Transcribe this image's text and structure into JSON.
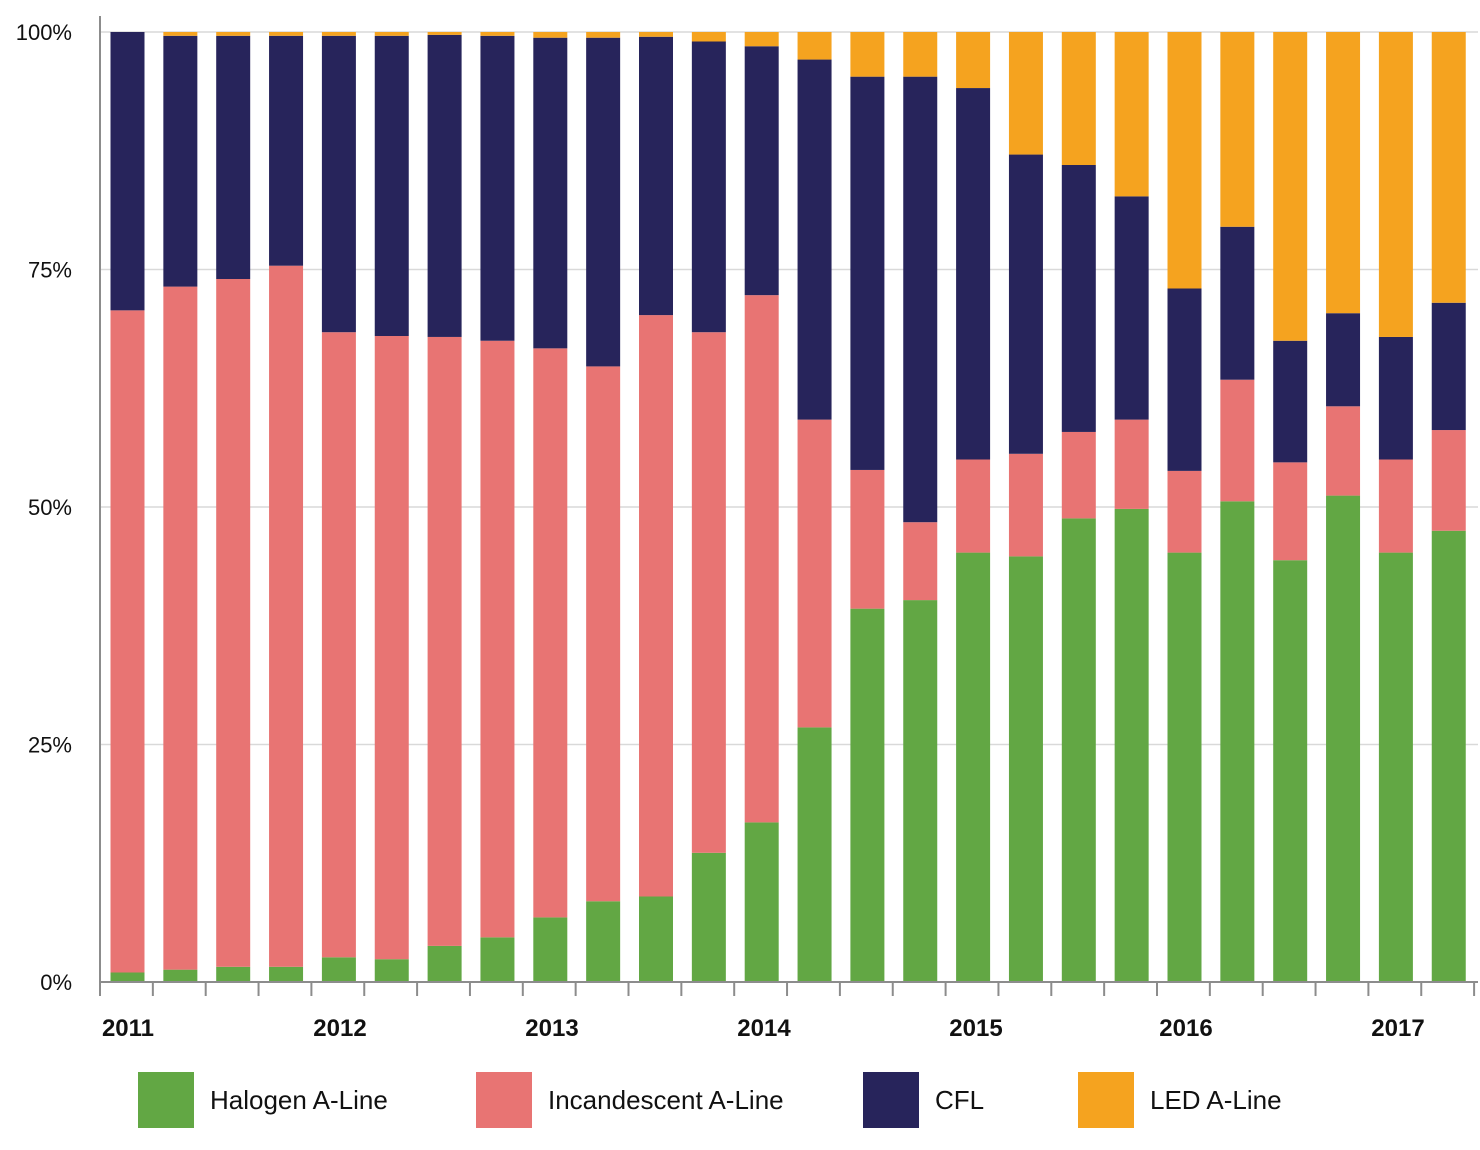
{
  "chart_data": {
    "type": "bar",
    "stacked": true,
    "x_tick_labels": [
      "2011",
      "2012",
      "2013",
      "2014",
      "2015",
      "2016",
      "2017"
    ],
    "y_tick_labels": [
      "0%",
      "25%",
      "50%",
      "75%",
      "100%"
    ],
    "ylim": [
      0,
      100
    ],
    "grid": "horizontal",
    "legend_placement": "bottom",
    "colors": {
      "halogen": "#62a744",
      "incandescent": "#e87473",
      "cfl": "#27245b",
      "led": "#f5a31f",
      "grid": "#d9d9d9",
      "axis": "#8c8c8c"
    },
    "series": [
      {
        "key": "halogen",
        "name": "Halogen A-Line",
        "values": [
          1.0,
          1.3,
          1.6,
          1.6,
          2.6,
          2.4,
          3.8,
          4.7,
          6.8,
          8.5,
          9.0,
          13.6,
          16.8,
          26.8,
          39.3,
          40.2,
          45.2,
          44.8,
          48.8,
          49.8,
          45.2,
          50.6,
          44.4,
          51.2,
          45.2,
          47.5
        ]
      },
      {
        "key": "incandescent",
        "name": "Incandescent A-Line",
        "values": [
          69.7,
          71.9,
          72.4,
          73.8,
          65.8,
          65.6,
          64.1,
          62.8,
          59.9,
          56.3,
          61.2,
          54.8,
          55.5,
          32.4,
          14.6,
          8.2,
          9.8,
          10.8,
          9.1,
          9.4,
          8.6,
          12.8,
          10.3,
          9.4,
          9.8,
          10.6
        ]
      },
      {
        "key": "cfl",
        "name": "CFL",
        "values": [
          29.3,
          26.4,
          25.6,
          24.2,
          31.2,
          31.6,
          31.8,
          32.1,
          32.7,
          34.6,
          29.3,
          30.6,
          26.2,
          37.9,
          41.4,
          46.9,
          39.1,
          31.5,
          28.1,
          23.5,
          19.2,
          16.1,
          12.8,
          9.8,
          12.9,
          13.4
        ]
      },
      {
        "key": "led",
        "name": "LED A-Line",
        "values": [
          0.0,
          0.4,
          0.4,
          0.4,
          0.4,
          0.4,
          0.3,
          0.4,
          0.6,
          0.6,
          0.5,
          1.0,
          1.5,
          2.9,
          4.7,
          4.7,
          5.9,
          12.9,
          14.0,
          17.3,
          27.0,
          20.5,
          32.5,
          29.6,
          32.1,
          28.5
        ]
      }
    ]
  }
}
